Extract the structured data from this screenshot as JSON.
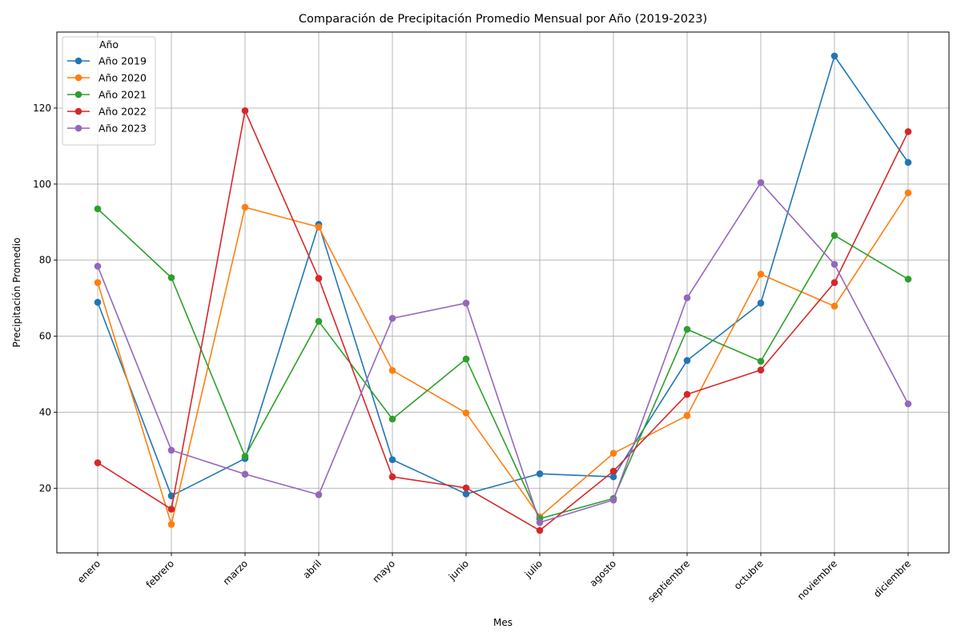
{
  "chart_data": {
    "type": "line",
    "title": "Comparación de Precipitación Promedio Mensual por Año (2019-2023)",
    "xlabel": "Mes",
    "ylabel": "Precipitación Promedio",
    "categories": [
      "enero",
      "febrero",
      "marzo",
      "abril",
      "mayo",
      "junio",
      "julio",
      "agosto",
      "septiembre",
      "octubre",
      "noviembre",
      "diciembre"
    ],
    "ylim": [
      3,
      140
    ],
    "yticks": [
      20,
      40,
      60,
      80,
      100,
      120
    ],
    "grid": true,
    "legend": {
      "title": "Año",
      "placement": "top-left"
    },
    "series": [
      {
        "name": "Año 2019",
        "color": "#1f77b4",
        "values": [
          68.9,
          18.0,
          27.8,
          89.4,
          27.5,
          18.5,
          23.8,
          23.0,
          53.6,
          68.7,
          133.7,
          105.7
        ]
      },
      {
        "name": "Año 2020",
        "color": "#ff7f0e",
        "values": [
          74.1,
          10.5,
          93.9,
          88.7,
          51.0,
          39.8,
          12.5,
          29.2,
          39.1,
          76.3,
          67.9,
          97.7
        ]
      },
      {
        "name": "Año 2021",
        "color": "#2ca02c",
        "values": [
          93.5,
          75.4,
          28.4,
          63.9,
          38.2,
          54.0,
          12.0,
          17.3,
          61.8,
          53.4,
          86.5,
          75.0
        ]
      },
      {
        "name": "Año 2022",
        "color": "#d62728",
        "values": [
          26.7,
          14.5,
          119.3,
          75.2,
          23.0,
          20.1,
          8.9,
          24.5,
          44.7,
          51.1,
          74.1,
          113.8
        ]
      },
      {
        "name": "Año 2023",
        "color": "#9467bd",
        "values": [
          78.4,
          30.0,
          23.7,
          18.3,
          64.7,
          68.7,
          11.0,
          16.9,
          70.1,
          100.4,
          78.9,
          42.2
        ]
      }
    ]
  }
}
